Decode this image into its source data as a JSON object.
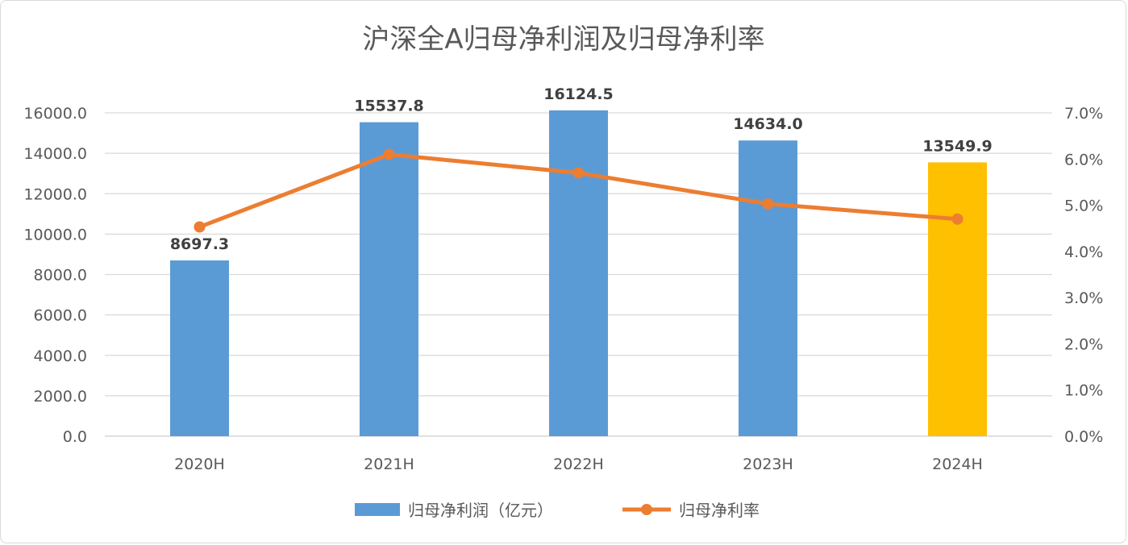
{
  "chart_data": {
    "type": "bar",
    "title": "沪深全A归母净利润及归母净利率",
    "categories": [
      "2020H",
      "2021H",
      "2022H",
      "2023H",
      "2024H"
    ],
    "series": [
      {
        "name": "归母净利润（亿元）",
        "type": "bar",
        "axis": "left",
        "values": [
          8697.3,
          15537.8,
          16124.5,
          14634.0,
          13549.9
        ],
        "data_labels": [
          "8697.3",
          "15537.8",
          "16124.5",
          "14634.0",
          "13549.9"
        ],
        "color": "#5b9bd5",
        "highlight": {
          "index": 4,
          "color": "#ffc000"
        }
      },
      {
        "name": "归母净利率",
        "type": "line",
        "axis": "right",
        "values": [
          4.53,
          6.1,
          5.7,
          5.03,
          4.7
        ],
        "unit": "%",
        "color": "#ed7d31"
      }
    ],
    "y_left": {
      "range": [
        0,
        16000
      ],
      "ticks": [
        0,
        2000,
        4000,
        6000,
        8000,
        10000,
        12000,
        14000,
        16000
      ],
      "tick_labels": [
        "0.0",
        "2000.0",
        "4000.0",
        "6000.0",
        "8000.0",
        "10000.0",
        "12000.0",
        "14000.0",
        "16000.0"
      ]
    },
    "y_right": {
      "range": [
        0,
        7
      ],
      "ticks": [
        0,
        1,
        2,
        3,
        4,
        5,
        6,
        7
      ],
      "tick_labels": [
        "0.0%",
        "1.0%",
        "2.0%",
        "3.0%",
        "4.0%",
        "5.0%",
        "6.0%",
        "7.0%"
      ]
    },
    "grid": true,
    "legend_position": "bottom"
  }
}
